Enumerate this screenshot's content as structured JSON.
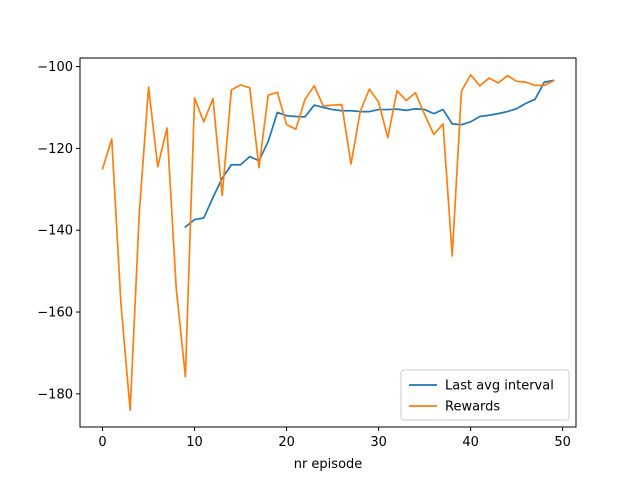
{
  "chart_data": {
    "type": "line",
    "title": "",
    "xlabel": "nr episode",
    "ylabel": "",
    "xlim": [
      -2.45,
      51.45
    ],
    "ylim": [
      -188.1,
      -97.9
    ],
    "xticks": [
      0,
      10,
      20,
      30,
      40,
      50
    ],
    "yticks": [
      -180,
      -160,
      -140,
      -120,
      -100
    ],
    "grid": false,
    "legend_position": "lower right",
    "series": [
      {
        "name": "Last avg interval",
        "color": "#1f77b4",
        "x": [
          9,
          10,
          11,
          12,
          13,
          14,
          15,
          16,
          17,
          18,
          19,
          20,
          21,
          22,
          23,
          24,
          25,
          26,
          27,
          28,
          29,
          30,
          31,
          32,
          33,
          34,
          35,
          36,
          37,
          38,
          39,
          40,
          41,
          42,
          43,
          44,
          45,
          46,
          47,
          48,
          49
        ],
        "values": [
          -139.2,
          -137.4,
          -137.0,
          -132.0,
          -127.3,
          -124.0,
          -124.0,
          -122.0,
          -123.0,
          -118.3,
          -111.2,
          -112.0,
          -112.2,
          -112.3,
          -109.4,
          -110.0,
          -110.5,
          -110.8,
          -110.8,
          -111.0,
          -111.0,
          -110.5,
          -110.5,
          -110.4,
          -110.7,
          -110.3,
          -110.5,
          -111.5,
          -110.5,
          -114.0,
          -114.2,
          -113.5,
          -112.2,
          -111.9,
          -111.5,
          -111.0,
          -110.3,
          -109.0,
          -108.0,
          -103.8,
          -103.4
        ]
      },
      {
        "name": "Rewards",
        "color": "#ff7f0e",
        "x": [
          0,
          1,
          2,
          3,
          4,
          5,
          6,
          7,
          8,
          9,
          10,
          11,
          12,
          13,
          14,
          15,
          16,
          17,
          18,
          19,
          20,
          21,
          22,
          23,
          24,
          25,
          26,
          27,
          28,
          29,
          30,
          31,
          32,
          33,
          34,
          35,
          36,
          37,
          38,
          39,
          40,
          41,
          42,
          43,
          44,
          45,
          46,
          47,
          48,
          49
        ],
        "values": [
          -125.0,
          -117.7,
          -158.0,
          -184.0,
          -135.5,
          -105.0,
          -124.5,
          -115.0,
          -154.0,
          -175.8,
          -107.7,
          -113.5,
          -107.8,
          -131.5,
          -105.7,
          -104.5,
          -105.2,
          -124.7,
          -107.0,
          -106.3,
          -114.2,
          -115.3,
          -108.0,
          -104.7,
          -109.7,
          -109.4,
          -109.3,
          -123.8,
          -111.0,
          -105.5,
          -108.7,
          -117.4,
          -105.9,
          -108.3,
          -106.4,
          -111.7,
          -116.6,
          -114.0,
          -146.3,
          -106.0,
          -102.0,
          -104.7,
          -102.8,
          -104.0,
          -102.2,
          -103.6,
          -103.8,
          -104.6,
          -104.6,
          -103.5
        ]
      }
    ]
  }
}
